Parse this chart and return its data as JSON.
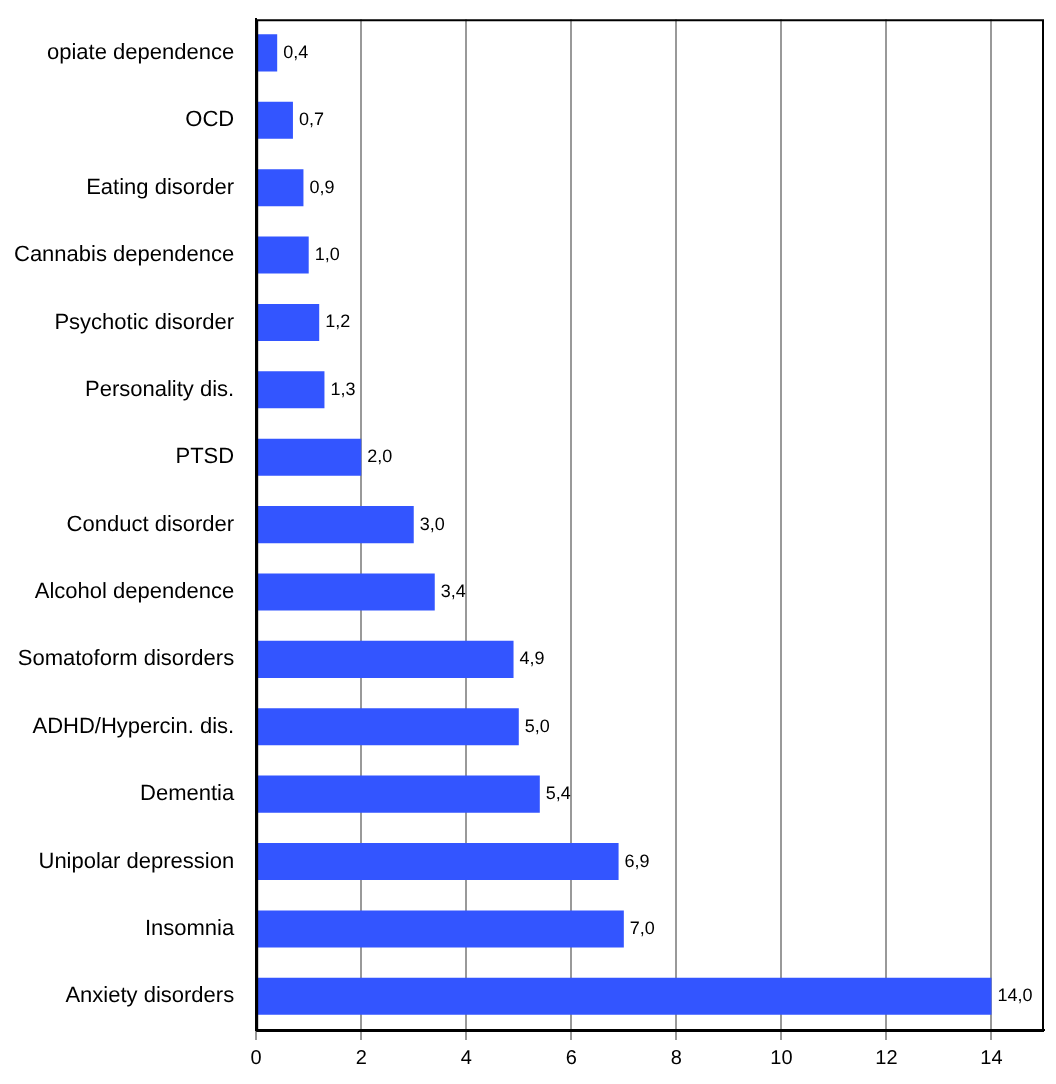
{
  "chart_data": {
    "type": "bar",
    "orientation": "horizontal",
    "categories": [
      "opiate dependence",
      "OCD",
      "Eating disorder",
      "Cannabis dependence",
      "Psychotic disorder",
      "Personality dis.",
      "PTSD",
      "Conduct disorder",
      "Alcohol dependence",
      "Somatoform disorders",
      "ADHD/Hypercin. dis.",
      "Dementia",
      "Unipolar depression",
      "Insomnia",
      "Anxiety disorders"
    ],
    "values": [
      0.4,
      0.7,
      0.9,
      1.0,
      1.2,
      1.3,
      2.0,
      3.0,
      3.4,
      4.9,
      5.0,
      5.4,
      6.9,
      7.0,
      14.0
    ],
    "value_labels": [
      "0,4",
      "0,7",
      "0,9",
      "1,0",
      "1,2",
      "1,3",
      "2,0",
      "3,0",
      "3,4",
      "4,9",
      "5,0",
      "5,4",
      "6,9",
      "7,0",
      "14,0"
    ],
    "color": "#3355ff",
    "xlim": [
      0,
      15
    ],
    "xticks": [
      0,
      2,
      4,
      6,
      8,
      10,
      12,
      14
    ],
    "grid": "x",
    "legend": false
  }
}
